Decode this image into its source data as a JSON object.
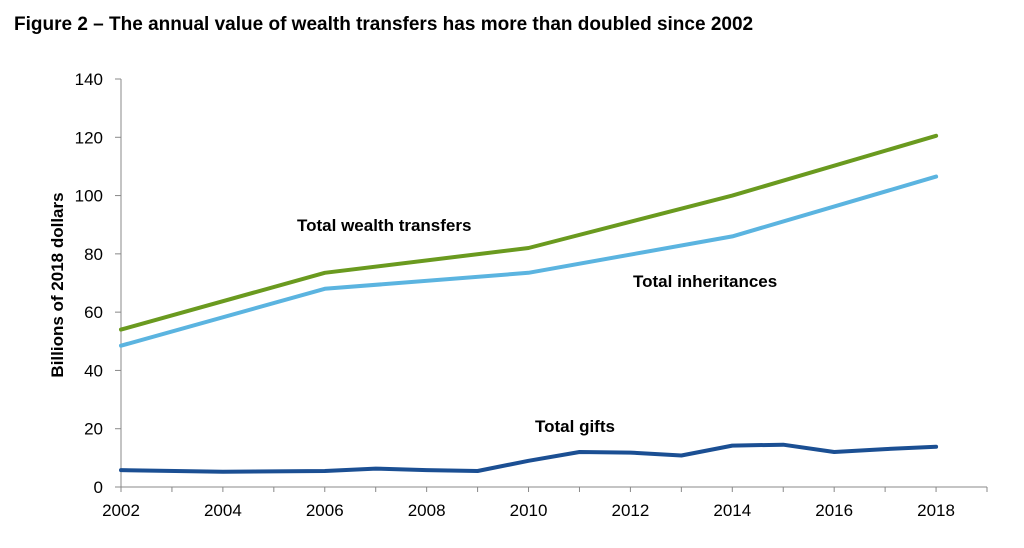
{
  "title": "Figure 2 – The annual value of wealth transfers has more than doubled since 2002",
  "chart_data": {
    "type": "line",
    "ylabel": "Billions of 2018 dollars",
    "xlabel": "",
    "xlim": [
      2002,
      2019
    ],
    "ylim": [
      0,
      140
    ],
    "x_ticks": [
      2002,
      2004,
      2006,
      2008,
      2010,
      2012,
      2014,
      2016,
      2018
    ],
    "y_ticks": [
      0,
      20,
      40,
      60,
      80,
      100,
      120,
      140
    ],
    "grid": false,
    "legend": "none",
    "series": [
      {
        "name": "Total wealth transfers",
        "color": "#6a9a1f",
        "x": [
          2002,
          2006,
          2010,
          2014,
          2018
        ],
        "values": [
          54,
          73.5,
          82,
          100,
          120.5
        ]
      },
      {
        "name": "Total inheritances",
        "color": "#5bb4e0",
        "x": [
          2002,
          2006,
          2010,
          2014,
          2018
        ],
        "values": [
          48.5,
          68,
          73.5,
          86,
          106.5
        ]
      },
      {
        "name": "Total gifts",
        "color": "#1b4f93",
        "x": [
          2002,
          2004,
          2006,
          2007,
          2008,
          2009,
          2010,
          2011,
          2012,
          2013,
          2014,
          2015,
          2016,
          2017,
          2018
        ],
        "values": [
          5.8,
          5.2,
          5.5,
          6.3,
          5.8,
          5.5,
          9,
          12,
          11.8,
          10.8,
          14.2,
          14.5,
          12,
          13,
          13.8
        ]
      }
    ]
  }
}
